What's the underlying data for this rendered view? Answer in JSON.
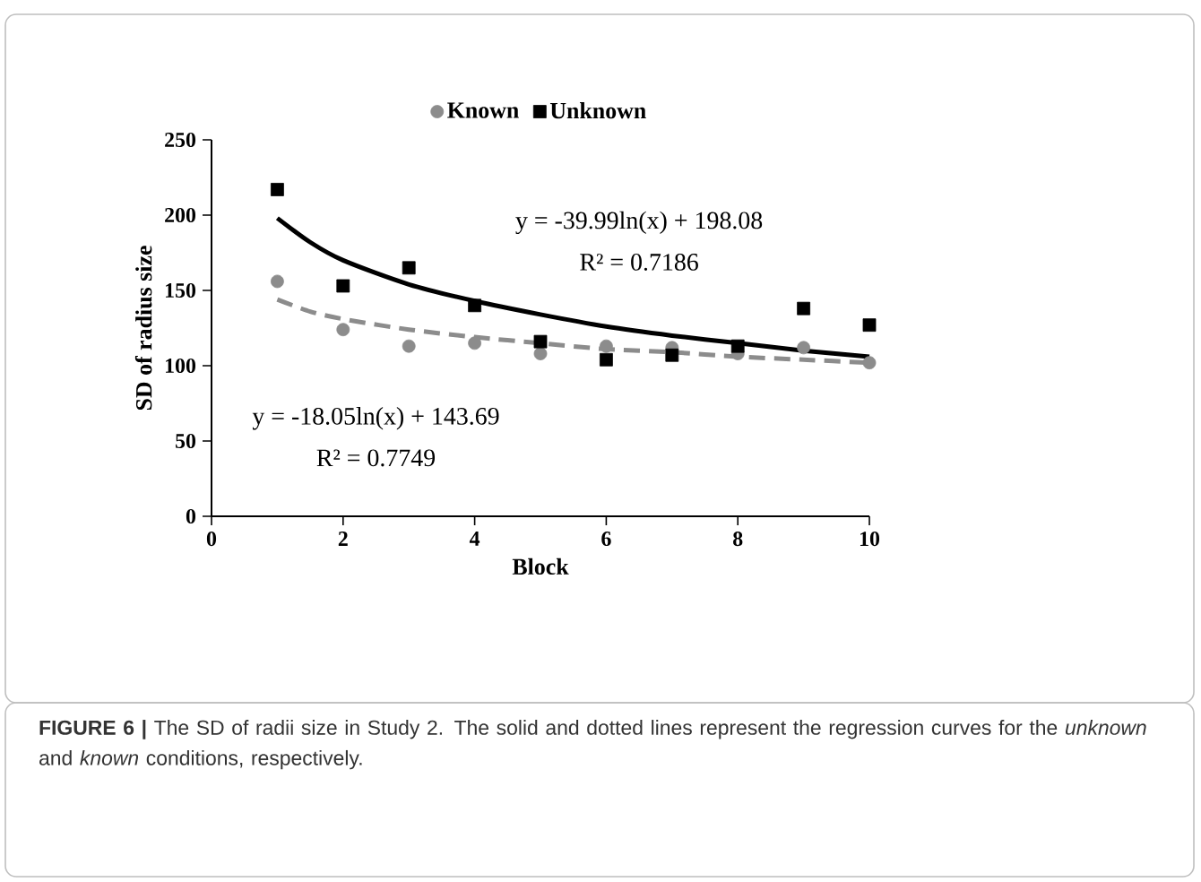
{
  "chart_data": {
    "type": "scatter",
    "xlabel": "Block",
    "ylabel": "SD of radius size",
    "x": [
      1,
      2,
      3,
      4,
      5,
      6,
      7,
      8,
      9,
      10
    ],
    "series": [
      {
        "name": "Known",
        "color": "#8c8c8c",
        "marker": "circle",
        "values": [
          156,
          124,
          113,
          115,
          108,
          113,
          112,
          108,
          112,
          102
        ]
      },
      {
        "name": "Unknown",
        "color": "#000000",
        "marker": "square",
        "values": [
          217,
          153,
          165,
          140,
          116,
          104,
          107,
          113,
          138,
          127
        ]
      },
      {
        "type": "line",
        "color": "#8c8c8c",
        "marker": "none",
        "line_style": "dashed",
        "x": [
          1,
          1.5,
          2,
          3,
          4,
          5,
          6,
          7,
          8,
          9,
          10
        ],
        "values": [
          144,
          136,
          131,
          124,
          119,
          115,
          111,
          109,
          106,
          104,
          102
        ]
      },
      {
        "type": "line",
        "color": "#000000",
        "marker": "none",
        "line_style": "solid",
        "x": [
          1,
          1.5,
          2,
          3,
          4,
          5,
          6,
          7,
          8,
          9,
          10
        ],
        "values": [
          198,
          182,
          170,
          154,
          143,
          134,
          126,
          120,
          115,
          110,
          106
        ]
      }
    ],
    "xlim": [
      0,
      10
    ],
    "ylim": [
      0,
      250
    ],
    "xticks": [
      0,
      2,
      4,
      6,
      8,
      10
    ],
    "yticks": [
      0,
      50,
      100,
      150,
      200,
      250
    ],
    "grid": false,
    "legend": "top",
    "annotations": [
      "y = -39.99ln(x)  + 198.08",
      "R² = 0.7186",
      "y = -18.05ln(x)  + 143.69",
      "R² = 0.7749",
      "**FIGURE 6 |** The SD of radii size in Study 2. The solid and dotted lines represent the regression curves for the *unknown* and *known* conditions, respectively."
    ]
  }
}
